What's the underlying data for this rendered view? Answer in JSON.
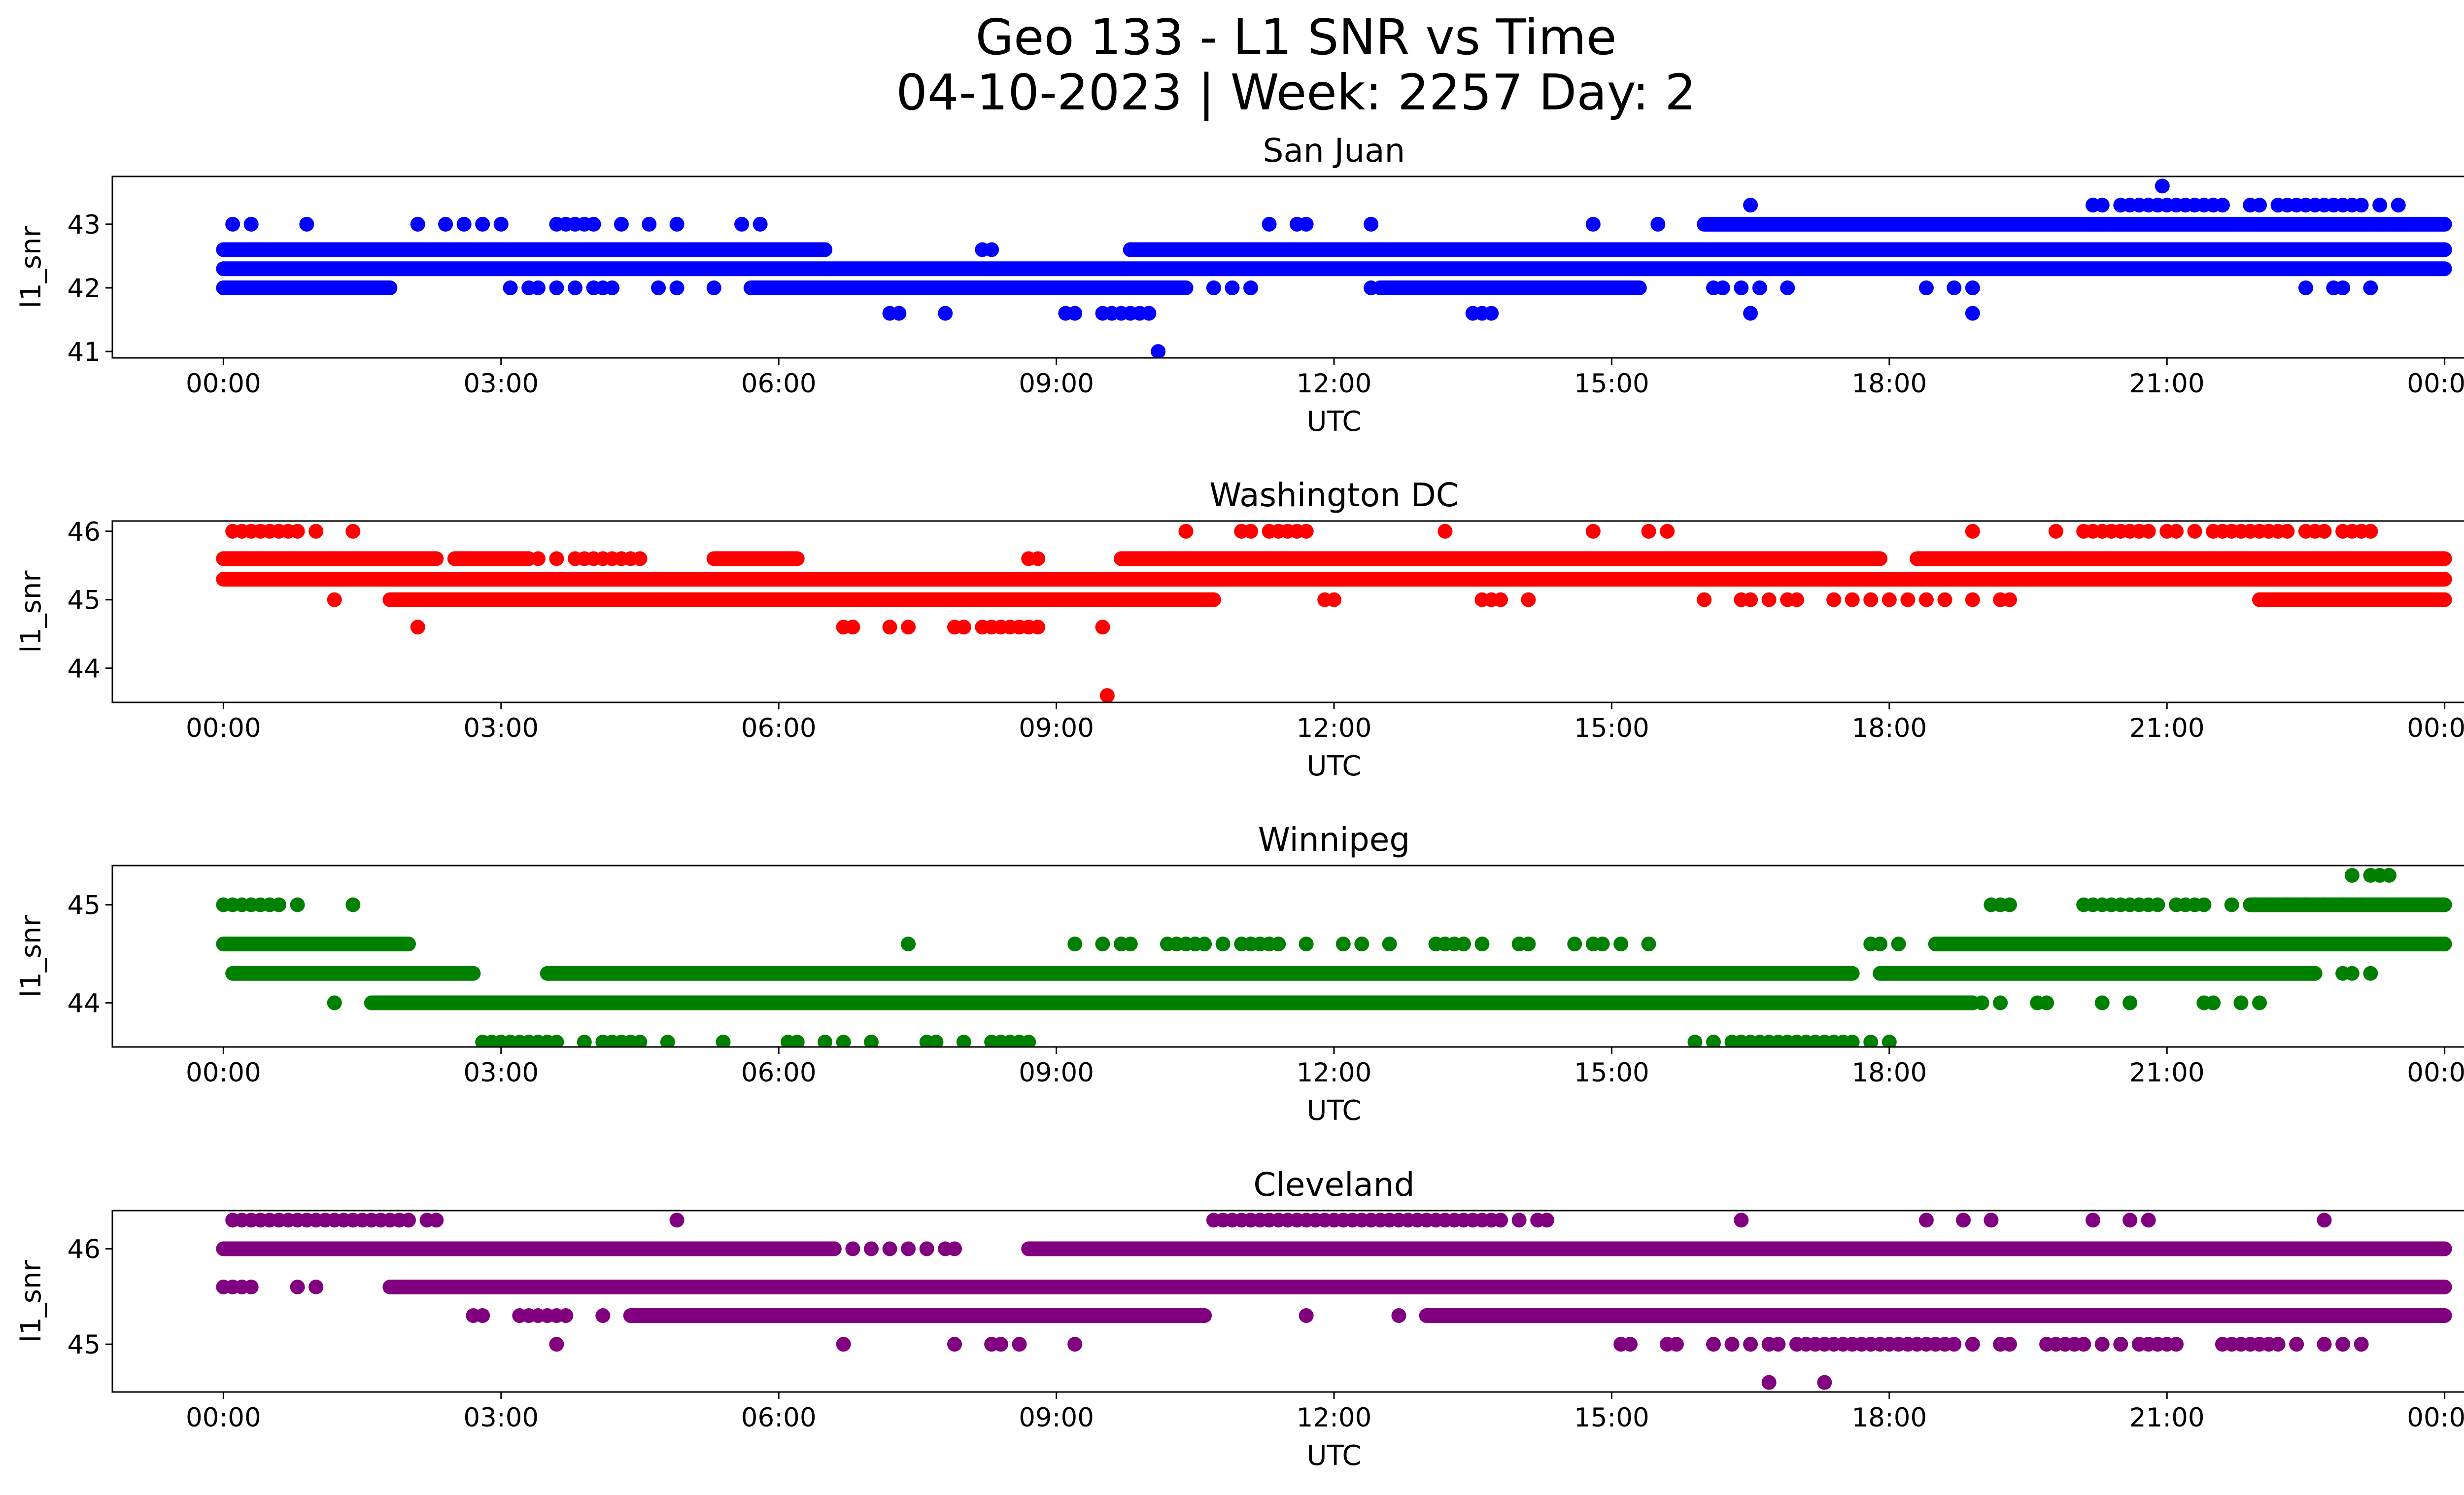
{
  "figure": {
    "title_line1": "Geo 133 - L1 SNR vs Time",
    "title_line2": "04-10-2023 | Week: 2257 Day: 2"
  },
  "chart_data": [
    {
      "type": "scatter",
      "title": "San Juan",
      "xlabel": "UTC",
      "ylabel": "l1_snr",
      "color": "#0000ff",
      "x_ticks": [
        "00:00",
        "03:00",
        "06:00",
        "09:00",
        "12:00",
        "15:00",
        "18:00",
        "21:00",
        "00:00"
      ],
      "y_ticks": [
        41,
        42,
        43
      ],
      "xlim_hours": [
        -1.2,
        25.2
      ],
      "ylim": [
        40.9,
        43.75
      ],
      "bands": [
        {
          "y": 42.3,
          "x": [
            [
              0,
              24
            ]
          ]
        },
        {
          "y": 42.6,
          "x": [
            [
              0,
              6.5
            ],
            [
              9.8,
              24
            ]
          ]
        },
        {
          "y": 42.0,
          "x": [
            [
              0,
              1.8
            ],
            [
              5.7,
              10.4
            ],
            [
              12.5,
              15.3
            ]
          ]
        },
        {
          "y": 43.0,
          "x": [
            [
              16.0,
              24
            ]
          ]
        }
      ],
      "points": [
        {
          "y": 43.0,
          "x": [
            0.1,
            0.3,
            0.9,
            2.1,
            2.4,
            2.6,
            2.8,
            3.0,
            3.6,
            3.7,
            3.8,
            3.9,
            4.0,
            4.3,
            4.6,
            4.9,
            5.6,
            5.8,
            11.3,
            11.6,
            11.7,
            12.4,
            14.8,
            15.5
          ]
        },
        {
          "y": 42.0,
          "x": [
            3.1,
            3.3,
            3.4,
            3.6,
            3.8,
            4.0,
            4.1,
            4.2,
            4.7,
            4.9,
            5.3,
            10.7,
            10.9,
            11.1,
            12.4,
            12.7,
            16.1,
            16.2,
            16.4,
            16.6,
            16.9,
            18.4,
            18.7,
            18.9,
            22.5,
            22.8,
            22.9,
            23.2
          ]
        },
        {
          "y": 42.6,
          "x": [
            8.2,
            8.3,
            9.8,
            12.9,
            13.1,
            13.4,
            13.5,
            14.1,
            14.3,
            14.4
          ]
        },
        {
          "y": 41.6,
          "x": [
            7.2,
            7.3,
            7.8,
            9.1,
            9.2,
            9.5,
            9.6,
            9.7,
            9.8,
            9.9,
            10.0,
            13.5,
            13.6,
            13.7,
            16.5,
            18.9
          ]
        },
        {
          "y": 43.3,
          "x": [
            16.5,
            20.2,
            20.3,
            20.5,
            20.6,
            20.7,
            20.8,
            20.9,
            21.0,
            21.1,
            21.2,
            21.3,
            21.4,
            21.5,
            21.6,
            21.9,
            22.0,
            22.2,
            22.3,
            22.4,
            22.5,
            22.6,
            22.7,
            22.8,
            22.9,
            23.0,
            23.1,
            23.3,
            23.5
          ]
        },
        {
          "y": 43.6,
          "x": [
            20.95
          ]
        },
        {
          "y": 41.0,
          "x": [
            10.1
          ]
        }
      ]
    },
    {
      "type": "scatter",
      "title": "Washington DC",
      "xlabel": "UTC",
      "ylabel": "l1_snr",
      "color": "#ff0000",
      "x_ticks": [
        "00:00",
        "03:00",
        "06:00",
        "09:00",
        "12:00",
        "15:00",
        "18:00",
        "21:00",
        "00:00"
      ],
      "y_ticks": [
        44,
        45,
        46
      ],
      "xlim_hours": [
        -1.2,
        25.2
      ],
      "ylim": [
        43.5,
        46.15
      ],
      "bands": [
        {
          "y": 45.3,
          "x": [
            [
              0,
              24
            ]
          ]
        },
        {
          "y": 45.6,
          "x": [
            [
              0,
              2.3
            ],
            [
              2.5,
              3.3
            ],
            [
              5.3,
              6.2
            ],
            [
              9.7,
              17.9
            ],
            [
              18.3,
              24
            ]
          ]
        },
        {
          "y": 45.0,
          "x": [
            [
              1.8,
              4.7
            ],
            [
              4.7,
              10.7
            ],
            [
              22.0,
              24
            ]
          ]
        }
      ],
      "points": [
        {
          "y": 46.0,
          "x": [
            0.1,
            0.2,
            0.3,
            0.4,
            0.5,
            0.6,
            0.7,
            0.8,
            1.0,
            1.4,
            10.4,
            11.0,
            11.1,
            11.3,
            11.4,
            11.5,
            11.6,
            11.7,
            13.2,
            14.8,
            15.4,
            15.6,
            18.9,
            19.8,
            20.1,
            20.2,
            20.3,
            20.4,
            20.5,
            20.6,
            20.7,
            20.8,
            21.0,
            21.1,
            21.3,
            21.5,
            21.6,
            21.7,
            21.8,
            21.9,
            22.0,
            22.1,
            22.2,
            22.3,
            22.5,
            22.6,
            22.7,
            22.9,
            23.0,
            23.1,
            23.2
          ]
        },
        {
          "y": 45.6,
          "x": [
            3.4,
            3.6,
            3.8,
            3.9,
            4.0,
            4.1,
            4.2,
            4.3,
            4.4,
            4.5,
            8.7,
            8.8
          ]
        },
        {
          "y": 45.0,
          "x": [
            1.2,
            11.9,
            12.0,
            13.6,
            13.7,
            13.8,
            14.1,
            16.0,
            16.4,
            16.5,
            16.7,
            16.9,
            17.0,
            17.4,
            17.6,
            17.8,
            18.0,
            18.2,
            18.4,
            18.6,
            18.9,
            19.2,
            19.3
          ]
        },
        {
          "y": 44.6,
          "x": [
            2.1,
            6.7,
            6.8,
            7.2,
            7.4,
            7.9,
            8.0,
            8.2,
            8.3,
            8.4,
            8.5,
            8.6,
            8.7,
            8.8,
            9.5
          ]
        },
        {
          "y": 43.6,
          "x": [
            9.55
          ]
        }
      ]
    },
    {
      "type": "scatter",
      "title": "Winnipeg",
      "xlabel": "UTC",
      "ylabel": "l1_snr",
      "color": "#008000",
      "x_ticks": [
        "00:00",
        "03:00",
        "06:00",
        "09:00",
        "12:00",
        "15:00",
        "18:00",
        "21:00",
        "00:00"
      ],
      "y_ticks": [
        44,
        45
      ],
      "xlim_hours": [
        -1.2,
        25.2
      ],
      "ylim": [
        43.55,
        45.4
      ],
      "bands": [
        {
          "y": 44.3,
          "x": [
            [
              0.1,
              2.7
            ],
            [
              3.5,
              17.6
            ],
            [
              17.9,
              22.6
            ]
          ]
        },
        {
          "y": 44.6,
          "x": [
            [
              0,
              2.0
            ],
            [
              18.5,
              24
            ]
          ]
        },
        {
          "y": 44.0,
          "x": [
            [
              1.6,
              18.9
            ]
          ]
        },
        {
          "y": 45.0,
          "x": [
            [
              21.9,
              24
            ]
          ]
        }
      ],
      "points": [
        {
          "y": 45.0,
          "x": [
            0.0,
            0.1,
            0.2,
            0.3,
            0.4,
            0.5,
            0.6,
            0.8,
            1.4,
            19.1,
            19.2,
            19.3,
            20.1,
            20.2,
            20.3,
            20.4,
            20.5,
            20.6,
            20.7,
            20.8,
            20.9,
            21.1,
            21.2,
            21.3,
            21.4,
            21.7,
            22.1,
            22.3,
            22.5,
            22.7,
            22.9,
            23.1
          ]
        },
        {
          "y": 44.6,
          "x": [
            7.4,
            9.2,
            9.5,
            9.7,
            9.8,
            10.2,
            10.3,
            10.4,
            10.5,
            10.6,
            10.8,
            11.0,
            11.1,
            11.2,
            11.3,
            11.4,
            11.7,
            12.1,
            12.3,
            12.6,
            13.1,
            13.2,
            13.3,
            13.4,
            13.6,
            14.0,
            14.1,
            14.6,
            14.8,
            14.9,
            15.1,
            15.4,
            17.8,
            17.9,
            18.1
          ]
        },
        {
          "y": 44.3,
          "x": [
            22.9,
            23.0,
            23.2
          ]
        },
        {
          "y": 44.0,
          "x": [
            1.2,
            18.9,
            19.0,
            19.2,
            19.6,
            19.7,
            20.3,
            20.6,
            21.4,
            21.5,
            21.8,
            22.0
          ]
        },
        {
          "y": 43.6,
          "x": [
            2.8,
            2.9,
            3.0,
            3.1,
            3.2,
            3.3,
            3.4,
            3.5,
            3.6,
            3.9,
            4.1,
            4.2,
            4.3,
            4.4,
            4.5,
            4.8,
            5.4,
            6.1,
            6.2,
            6.5,
            6.7,
            7.0,
            7.6,
            7.7,
            8.0,
            8.3,
            8.4,
            8.5,
            8.6,
            8.7,
            15.9,
            16.1,
            16.3,
            16.4,
            16.5,
            16.6,
            16.7,
            16.8,
            16.9,
            17.0,
            17.1,
            17.2,
            17.3,
            17.4,
            17.5,
            17.6,
            17.8,
            18.0
          ]
        },
        {
          "y": 45.3,
          "x": [
            23.0,
            23.2,
            23.3,
            23.4
          ]
        }
      ]
    },
    {
      "type": "scatter",
      "title": "Cleveland",
      "xlabel": "UTC",
      "ylabel": "l1_snr",
      "color": "#800080",
      "x_ticks": [
        "00:00",
        "03:00",
        "06:00",
        "09:00",
        "12:00",
        "15:00",
        "18:00",
        "21:00",
        "00:00"
      ],
      "y_ticks": [
        45,
        46
      ],
      "xlim_hours": [
        -1.2,
        25.2
      ],
      "ylim": [
        44.5,
        46.4
      ],
      "bands": [
        {
          "y": 46.0,
          "x": [
            [
              0,
              6.6
            ],
            [
              8.7,
              24
            ]
          ]
        },
        {
          "y": 45.6,
          "x": [
            [
              1.8,
              24
            ]
          ]
        },
        {
          "y": 45.3,
          "x": [
            [
              4.4,
              10.6
            ],
            [
              13.0,
              24
            ]
          ]
        }
      ],
      "points": [
        {
          "y": 46.3,
          "x": [
            0.1,
            0.2,
            0.3,
            0.4,
            0.5,
            0.6,
            0.7,
            0.8,
            0.9,
            1.0,
            1.1,
            1.2,
            1.3,
            1.4,
            1.5,
            1.6,
            1.7,
            1.8,
            1.9,
            2.0,
            2.2,
            2.3,
            4.9,
            10.7,
            10.8,
            10.9,
            11.0,
            11.1,
            11.2,
            11.3,
            11.4,
            11.5,
            11.6,
            11.7,
            11.8,
            11.9,
            12.0,
            12.1,
            12.2,
            12.3,
            12.4,
            12.5,
            12.6,
            12.7,
            12.8,
            12.9,
            13.0,
            13.1,
            13.2,
            13.3,
            13.4,
            13.5,
            13.6,
            13.7,
            13.8,
            14.0,
            14.2,
            14.3,
            16.4,
            18.4,
            18.8,
            19.1,
            20.2,
            20.6,
            20.8,
            22.7
          ]
        },
        {
          "y": 46.0,
          "x": [
            6.8,
            7.0,
            7.2,
            7.4,
            7.6,
            7.8,
            7.9
          ]
        },
        {
          "y": 45.6,
          "x": [
            0.0,
            0.1,
            0.2,
            0.3,
            0.8,
            1.0
          ]
        },
        {
          "y": 45.3,
          "x": [
            2.7,
            2.8,
            3.2,
            3.3,
            3.4,
            3.5,
            3.6,
            3.7,
            4.1,
            11.7,
            12.7,
            13.0
          ]
        },
        {
          "y": 45.0,
          "x": [
            3.6,
            6.7,
            7.9,
            8.3,
            8.4,
            8.6,
            9.2,
            15.1,
            15.2,
            15.6,
            15.7,
            16.1,
            16.3,
            16.5,
            16.7,
            16.8,
            17.0,
            17.1,
            17.2,
            17.3,
            17.4,
            17.5,
            17.6,
            17.7,
            17.8,
            17.9,
            18.0,
            18.1,
            18.2,
            18.3,
            18.4,
            18.5,
            18.6,
            18.7,
            18.9,
            19.2,
            19.3,
            19.7,
            19.8,
            19.9,
            20.0,
            20.1,
            20.3,
            20.5,
            20.7,
            20.8,
            20.9,
            21.0,
            21.1,
            21.6,
            21.7,
            21.8,
            21.9,
            22.0,
            22.1,
            22.2,
            22.4,
            22.7,
            22.9,
            23.1
          ]
        },
        {
          "y": 44.6,
          "x": [
            16.7,
            17.3
          ]
        }
      ]
    }
  ]
}
